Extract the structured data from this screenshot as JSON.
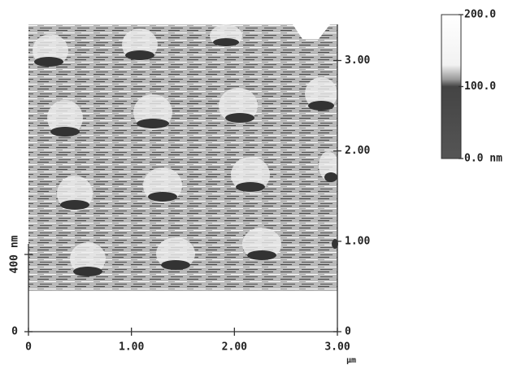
{
  "chart_data": {
    "type": "surface",
    "xlim": [
      0,
      3
    ],
    "xticks": [
      0,
      {
        "value": 1,
        "label": "1.00"
      },
      {
        "value": 2,
        "label": "2.00"
      },
      {
        "value": 3,
        "label": "3.00"
      }
    ],
    "x_unit": "μm",
    "ylim": [
      0,
      3.4
    ],
    "yticks": [
      0,
      {
        "value": 1,
        "label": "1.00"
      },
      {
        "value": 2,
        "label": "2.00"
      },
      {
        "value": 3,
        "label": "3.00"
      }
    ],
    "zlim": [
      0,
      400
    ],
    "zticks": [
      0,
      {
        "value": 400,
        "label": "400 nm"
      }
    ],
    "colorbar": {
      "lim": [
        0,
        200
      ],
      "ticks": [
        {
          "value": 0,
          "label": "0.0 nm"
        },
        {
          "value": 100,
          "label": "100.0"
        },
        {
          "value": 200,
          "label": "200.0"
        }
      ]
    }
  }
}
